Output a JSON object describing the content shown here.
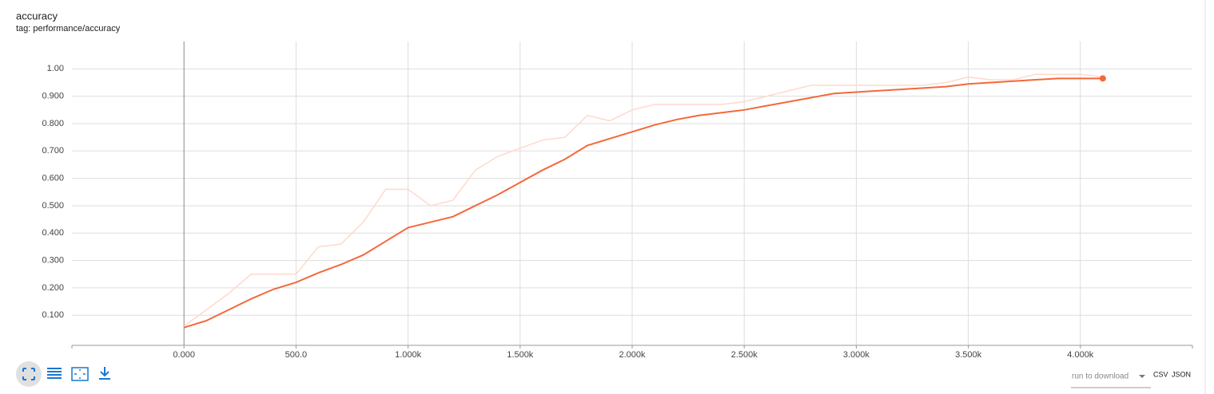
{
  "chart_data": {
    "type": "line",
    "title": "accuracy",
    "subtitle": "tag: performance/accuracy",
    "x": [
      0,
      100,
      200,
      300,
      400,
      500,
      600,
      700,
      800,
      900,
      1000,
      1100,
      1200,
      1300,
      1400,
      1500,
      1600,
      1700,
      1800,
      1900,
      2000,
      2100,
      2200,
      2300,
      2400,
      2500,
      2600,
      2700,
      2800,
      2900,
      3000,
      3100,
      3200,
      3300,
      3400,
      3500,
      3600,
      3700,
      3800,
      3900,
      4000,
      4100
    ],
    "series": [
      {
        "color": "#ffd9cc",
        "values": [
          0.06,
          0.12,
          0.18,
          0.25,
          0.25,
          0.25,
          0.35,
          0.36,
          0.44,
          0.56,
          0.56,
          0.5,
          0.52,
          0.63,
          0.68,
          0.71,
          0.74,
          0.75,
          0.83,
          0.81,
          0.85,
          0.87,
          0.87,
          0.87,
          0.87,
          0.88,
          0.9,
          0.92,
          0.94,
          0.94,
          0.94,
          0.94,
          0.94,
          0.94,
          0.95,
          0.97,
          0.96,
          0.96,
          0.98,
          0.98,
          0.98,
          0.97
        ]
      },
      {
        "color": "#f4683a",
        "values": [
          0.055,
          0.08,
          0.12,
          0.16,
          0.195,
          0.22,
          0.255,
          0.285,
          0.32,
          0.37,
          0.42,
          0.44,
          0.46,
          0.5,
          0.54,
          0.585,
          0.63,
          0.67,
          0.72,
          0.745,
          0.77,
          0.795,
          0.815,
          0.83,
          0.84,
          0.85,
          0.865,
          0.88,
          0.895,
          0.91,
          0.915,
          0.92,
          0.925,
          0.93,
          0.935,
          0.945,
          0.95,
          0.955,
          0.96,
          0.965,
          0.965,
          0.965
        ]
      }
    ],
    "xlim": [
      -500,
      4500
    ],
    "xticks": [
      {
        "value": 0,
        "label": "0.000"
      },
      {
        "value": 500,
        "label": "500.0"
      },
      {
        "value": 1000,
        "label": "1.000k"
      },
      {
        "value": 1500,
        "label": "1.500k"
      },
      {
        "value": 2000,
        "label": "2.000k"
      },
      {
        "value": 2500,
        "label": "2.500k"
      },
      {
        "value": 3000,
        "label": "3.000k"
      },
      {
        "value": 3500,
        "label": "3.500k"
      },
      {
        "value": 4000,
        "label": "4.000k"
      }
    ],
    "ylim": [
      -0.01,
      1.1
    ],
    "yticks": [
      {
        "value": 0.1,
        "label": "0.100"
      },
      {
        "value": 0.2,
        "label": "0.200"
      },
      {
        "value": 0.3,
        "label": "0.300"
      },
      {
        "value": 0.4,
        "label": "0.400"
      },
      {
        "value": 0.5,
        "label": "0.500"
      },
      {
        "value": 0.6,
        "label": "0.600"
      },
      {
        "value": 0.7,
        "label": "0.700"
      },
      {
        "value": 0.8,
        "label": "0.800"
      },
      {
        "value": 0.9,
        "label": "0.900"
      },
      {
        "value": 1,
        "label": "1.00"
      }
    ],
    "grid": true
  },
  "controls": {
    "run_select": "run to download",
    "csv": "CSV",
    "json": "JSON"
  }
}
